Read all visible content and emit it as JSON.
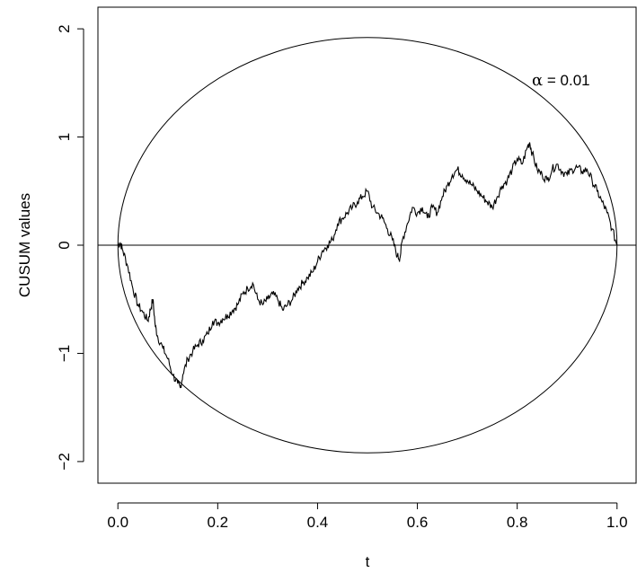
{
  "chart_data": {
    "type": "line",
    "title": "",
    "xlabel": "t",
    "ylabel": "CUSUM values",
    "xlim": [
      0.0,
      1.0
    ],
    "ylim": [
      -2.0,
      2.0
    ],
    "x_ticks": [
      "0.0",
      "0.2",
      "0.4",
      "0.6",
      "0.8",
      "1.0"
    ],
    "x_tick_values": [
      0.0,
      0.2,
      0.4,
      0.6,
      0.8,
      1.0
    ],
    "y_ticks": [
      "−2",
      "−1",
      "0",
      "1",
      "2"
    ],
    "y_tick_values": [
      -2,
      -1,
      0,
      1,
      2
    ],
    "grid": false,
    "annotation": {
      "symbol": "α",
      "text": " = 0.01"
    },
    "boundary": {
      "shape": "ellipse",
      "x_range": [
        0.0,
        1.0
      ],
      "y_max": 1.92,
      "y_min": -1.92
    },
    "reference_line_y": 0,
    "series": [
      {
        "x": [
          0.0,
          0.005,
          0.01,
          0.02,
          0.03,
          0.04,
          0.05,
          0.06,
          0.065,
          0.07,
          0.075,
          0.08,
          0.09,
          0.1,
          0.11,
          0.12,
          0.125,
          0.13,
          0.14,
          0.15,
          0.16,
          0.17,
          0.18,
          0.19,
          0.2,
          0.21,
          0.22,
          0.23,
          0.24,
          0.25,
          0.26,
          0.27,
          0.28,
          0.29,
          0.3,
          0.31,
          0.32,
          0.33,
          0.34,
          0.35,
          0.36,
          0.37,
          0.38,
          0.39,
          0.4,
          0.41,
          0.42,
          0.43,
          0.44,
          0.45,
          0.46,
          0.47,
          0.48,
          0.49,
          0.5,
          0.51,
          0.52,
          0.53,
          0.54,
          0.55,
          0.56,
          0.565,
          0.57,
          0.58,
          0.59,
          0.6,
          0.61,
          0.62,
          0.63,
          0.64,
          0.65,
          0.66,
          0.67,
          0.68,
          0.69,
          0.7,
          0.71,
          0.72,
          0.73,
          0.74,
          0.75,
          0.76,
          0.77,
          0.78,
          0.79,
          0.8,
          0.81,
          0.82,
          0.825,
          0.83,
          0.84,
          0.85,
          0.86,
          0.87,
          0.88,
          0.89,
          0.9,
          0.91,
          0.92,
          0.93,
          0.94,
          0.95,
          0.96,
          0.97,
          0.98,
          0.99,
          1.0
        ],
        "y": [
          0.0,
          0.02,
          -0.05,
          -0.2,
          -0.4,
          -0.55,
          -0.62,
          -0.7,
          -0.6,
          -0.5,
          -0.75,
          -0.85,
          -0.95,
          -1.05,
          -1.2,
          -1.28,
          -1.32,
          -1.2,
          -1.05,
          -0.98,
          -0.92,
          -0.88,
          -0.82,
          -0.7,
          -0.72,
          -0.68,
          -0.65,
          -0.6,
          -0.55,
          -0.45,
          -0.4,
          -0.35,
          -0.5,
          -0.55,
          -0.5,
          -0.45,
          -0.5,
          -0.6,
          -0.55,
          -0.5,
          -0.4,
          -0.35,
          -0.3,
          -0.25,
          -0.15,
          -0.05,
          0.0,
          0.05,
          0.2,
          0.25,
          0.3,
          0.35,
          0.4,
          0.45,
          0.5,
          0.35,
          0.3,
          0.25,
          0.15,
          0.05,
          -0.1,
          -0.12,
          0.05,
          0.2,
          0.35,
          0.3,
          0.35,
          0.25,
          0.35,
          0.3,
          0.45,
          0.55,
          0.65,
          0.7,
          0.65,
          0.6,
          0.55,
          0.5,
          0.45,
          0.4,
          0.35,
          0.45,
          0.55,
          0.6,
          0.7,
          0.8,
          0.75,
          0.9,
          0.95,
          0.85,
          0.7,
          0.65,
          0.6,
          0.7,
          0.75,
          0.68,
          0.65,
          0.7,
          0.72,
          0.68,
          0.7,
          0.6,
          0.5,
          0.4,
          0.3,
          0.15,
          0.0
        ]
      }
    ]
  }
}
